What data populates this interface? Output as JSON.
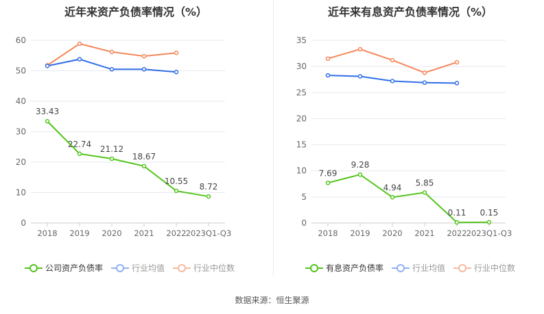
{
  "chart_data": [
    {
      "type": "line",
      "title": "近年来资产负债率情况（%）",
      "categories": [
        "2018",
        "2019",
        "2020",
        "2021",
        "2022",
        "2023Q1-Q3"
      ],
      "ylim": [
        0,
        60
      ],
      "yticks": [
        0,
        10,
        20,
        30,
        40,
        50,
        60
      ],
      "series": [
        {
          "name": "公司资产负债率",
          "color": "#52c41a",
          "values": [
            33.43,
            22.74,
            21.12,
            18.67,
            10.55,
            8.72
          ],
          "labels": [
            "33.43",
            "22.74",
            "21.12",
            "18.67",
            "10.55",
            "8.72"
          ]
        },
        {
          "name": "行业均值",
          "color": "#2f6ee8",
          "legend_color": "#8fb0f0",
          "values": [
            51.6,
            53.8,
            50.5,
            50.5,
            49.6,
            null
          ]
        },
        {
          "name": "行业中位数",
          "color": "#f5865a",
          "legend_color": "#f7b9a0",
          "values": [
            51.8,
            58.9,
            56.2,
            54.8,
            55.9,
            null
          ]
        }
      ]
    },
    {
      "type": "line",
      "title": "近年来有息资产负债率情况（%）",
      "categories": [
        "2018",
        "2019",
        "2020",
        "2021",
        "2022",
        "2023Q1-Q3"
      ],
      "ylim": [
        0,
        35
      ],
      "yticks": [
        0,
        5,
        10,
        15,
        20,
        25,
        30,
        35
      ],
      "series": [
        {
          "name": "有息资产负债率",
          "color": "#52c41a",
          "values": [
            7.69,
            9.28,
            4.94,
            5.85,
            0.11,
            0.15
          ],
          "labels": [
            "7.69",
            "9.28",
            "4.94",
            "5.85",
            "0.11",
            "0.15"
          ]
        },
        {
          "name": "行业均值",
          "color": "#2f6ee8",
          "legend_color": "#8fb0f0",
          "values": [
            28.3,
            28.1,
            27.2,
            26.9,
            26.8,
            null
          ]
        },
        {
          "name": "行业中位数",
          "color": "#f5865a",
          "legend_color": "#f7b9a0",
          "values": [
            31.5,
            33.3,
            31.2,
            28.8,
            30.8,
            null
          ]
        }
      ]
    }
  ],
  "source": "数据来源：恒生聚源"
}
